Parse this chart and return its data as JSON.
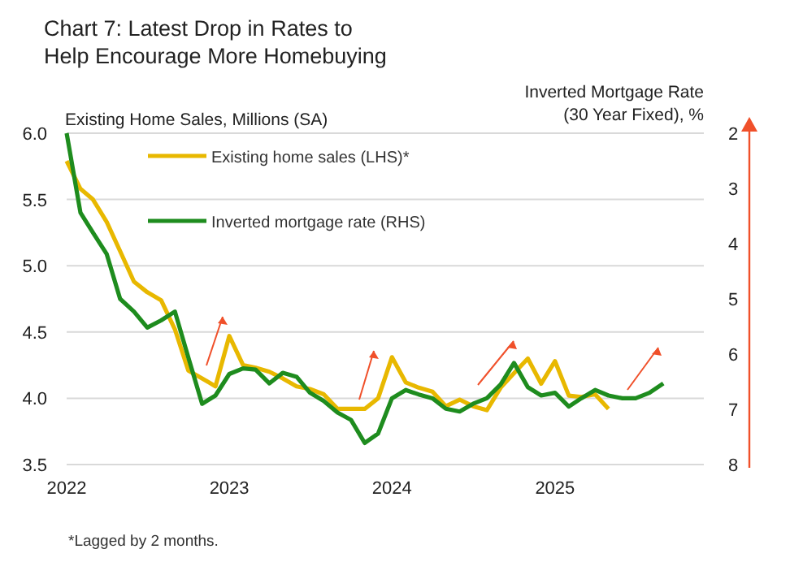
{
  "chart_data": {
    "type": "line",
    "title": "Chart 7: Latest Drop in Rates to Help Encourage More Homebuying",
    "ylabel": "Existing Home Sales, Millions (SA)",
    "y2label": "Inverted Mortgage Rate (30 Year Fixed), %",
    "annotations": [
      "*Lagged by 2 months."
    ],
    "x": [
      "2022-01",
      "2022-02",
      "2022-03",
      "2022-04",
      "2022-05",
      "2022-06",
      "2022-07",
      "2022-08",
      "2022-09",
      "2022-10",
      "2022-11",
      "2022-12",
      "2023-01",
      "2023-02",
      "2023-03",
      "2023-04",
      "2023-05",
      "2023-06",
      "2023-07",
      "2023-08",
      "2023-09",
      "2023-10",
      "2023-11",
      "2023-12",
      "2024-01",
      "2024-02",
      "2024-03",
      "2024-04",
      "2024-05",
      "2024-06",
      "2024-07",
      "2024-08",
      "2024-09",
      "2024-10",
      "2024-11",
      "2024-12",
      "2025-01",
      "2025-02",
      "2025-03",
      "2025-04",
      "2025-05",
      "2025-06",
      "2025-07",
      "2025-08",
      "2025-09"
    ],
    "series": [
      {
        "name": "Existing home sales (LHS)*",
        "color": "#e8b800",
        "values": [
          5.79,
          5.58,
          5.5,
          5.33,
          5.11,
          4.88,
          4.8,
          4.74,
          4.52,
          4.21,
          4.15,
          4.09,
          4.47,
          4.25,
          4.23,
          4.2,
          4.15,
          4.09,
          4.07,
          4.03,
          3.92,
          3.92,
          3.92,
          4.0,
          4.31,
          4.12,
          4.08,
          4.05,
          3.94,
          3.99,
          3.94,
          3.91,
          4.08,
          4.19,
          4.3,
          4.11,
          4.28,
          4.02,
          4.01,
          4.03,
          3.92,
          null,
          null,
          null,
          null
        ]
      },
      {
        "name": "Inverted mortgage rate (RHS)",
        "color": "#1e8c1e",
        "axis": "y2",
        "values": [
          2.0,
          3.44,
          3.8,
          4.19,
          5.0,
          5.23,
          5.52,
          5.39,
          5.23,
          6.06,
          6.9,
          6.75,
          6.36,
          6.26,
          6.28,
          6.53,
          6.34,
          6.41,
          6.7,
          6.85,
          7.06,
          7.19,
          7.61,
          7.44,
          6.8,
          6.65,
          6.73,
          6.8,
          6.99,
          7.04,
          6.9,
          6.8,
          6.55,
          6.16,
          6.6,
          6.75,
          6.7,
          6.95,
          6.8,
          6.65,
          6.75,
          6.8,
          6.8,
          6.7,
          6.53
        ]
      }
    ],
    "xlim": [
      "2022-01",
      "2025-12"
    ],
    "xticks": [
      {
        "value": "2022-01",
        "label": "2022"
      },
      {
        "value": "2023-01",
        "label": "2023"
      },
      {
        "value": "2024-01",
        "label": "2024"
      },
      {
        "value": "2025-01",
        "label": "2025"
      }
    ],
    "ylim": [
      3.5,
      6.0
    ],
    "yticks": [
      {
        "value": 3.5,
        "label": "3.5"
      },
      {
        "value": 4.0,
        "label": "4.0"
      },
      {
        "value": 4.5,
        "label": "4.5"
      },
      {
        "value": 5.0,
        "label": "5.0"
      },
      {
        "value": 5.5,
        "label": "5.5"
      },
      {
        "value": 6.0,
        "label": "6.0"
      }
    ],
    "y2lim": [
      8,
      2
    ],
    "y2ticks": [
      2,
      3,
      4,
      5,
      6,
      7,
      8
    ],
    "grid": "y",
    "legend": "top left",
    "marker": "none",
    "line_style": "solid"
  }
}
